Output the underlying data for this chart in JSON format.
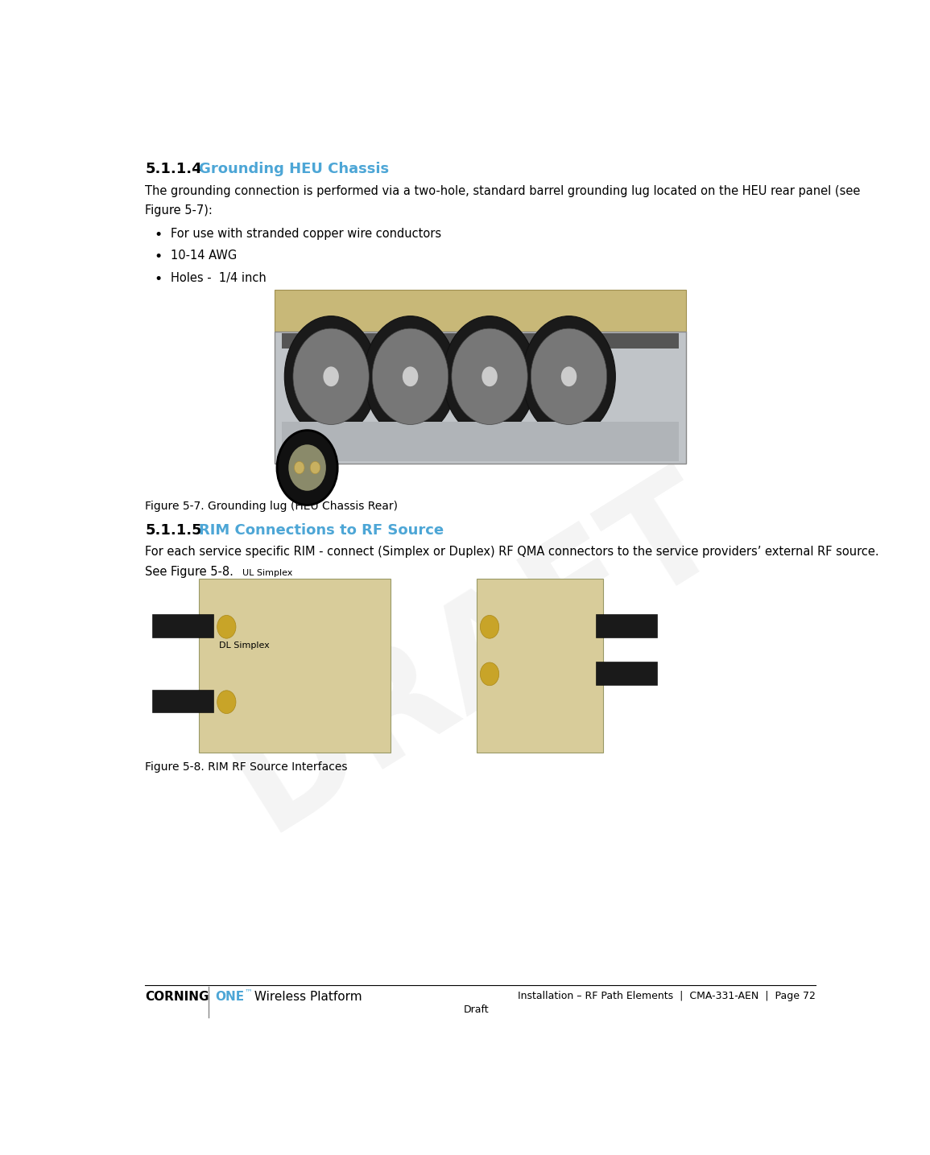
{
  "bg_color": "#ffffff",
  "section_number_1": "5.1.1.4",
  "section_title_1": "Grounding HEU Chassis",
  "section_number_2": "5.1.1.5",
  "section_title_2": "RIM Connections to RF Source",
  "heading_color": "#4da6d6",
  "body_color": "#000000",
  "body_text_1a": "The grounding connection is performed via a two-hole, standard barrel grounding lug located on the HEU rear panel (see",
  "body_text_1b": "Figure 5-7):",
  "bullet_items_1": [
    "For use with stranded copper wire conductors",
    "10-14 AWG",
    "Holes -  1/4 inch"
  ],
  "figure_label_1": "Figure 5-7. Grounding lug (HEU Chassis Rear)",
  "body_text_2a": "For each service specific RIM - connect (Simplex or Duplex) RF QMA connectors to the service providers’ external RF source.",
  "body_text_2b": "See Figure 5-8.",
  "figure_label_2": "Figure 5-8. RIM RF Source Interfaces",
  "footer_left_1": "CORNING",
  "footer_left_2": "ONE",
  "footer_left_3": "™",
  "footer_left_4": " Wireless Platform",
  "footer_center": "Draft",
  "footer_right": "Installation – RF Path Elements  |  CMA-331-AEN  |  Page 72",
  "draft_watermark": "DRAFT",
  "font_size_heading": 13,
  "font_size_body": 10.5,
  "font_size_caption": 10,
  "font_size_footer": 9,
  "one_color": "#4da6d6"
}
